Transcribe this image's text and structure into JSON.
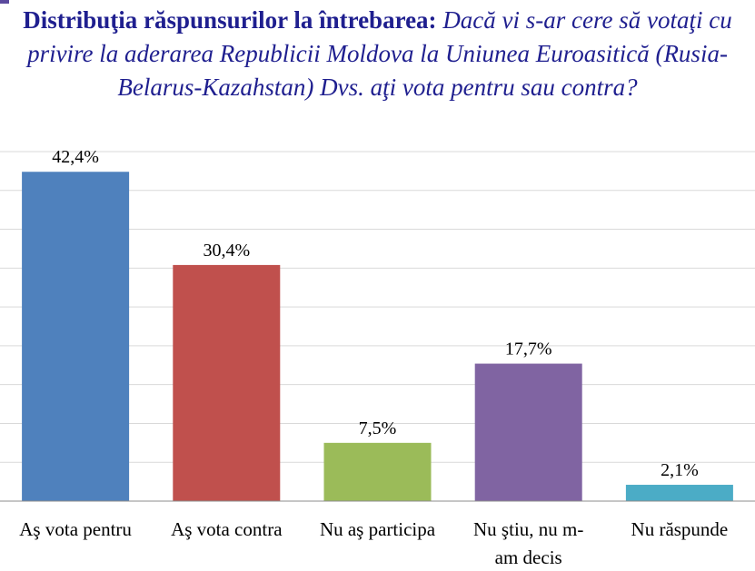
{
  "chart_data": {
    "type": "bar",
    "title_bold": "Distribuţia răspunsurilor la întrebarea:",
    "title_italic": "Dacă vi s-ar cere să votaţi cu privire la aderarea Republicii Moldova la Uniunea Euroasitică (Rusia-Belarus-Kazahstan) Dvs. aţi vota pentru sau contra?",
    "categories": [
      [
        "Aş vota pentru"
      ],
      [
        "Aş vota contra"
      ],
      [
        "Nu aş participa"
      ],
      [
        "Nu ştiu, nu m-",
        "am decis"
      ],
      [
        "Nu răspunde"
      ]
    ],
    "values": [
      42.4,
      30.4,
      7.5,
      17.7,
      2.1
    ],
    "value_labels": [
      "42,4%",
      "30,4%",
      "7,5%",
      "17,7%",
      "2,1%"
    ],
    "colors": [
      "#4f81bd",
      "#c0504d",
      "#9bbb59",
      "#8064a2",
      "#4bacc6"
    ],
    "ylim": [
      0,
      45
    ],
    "gridlines": true,
    "legend": "none"
  }
}
